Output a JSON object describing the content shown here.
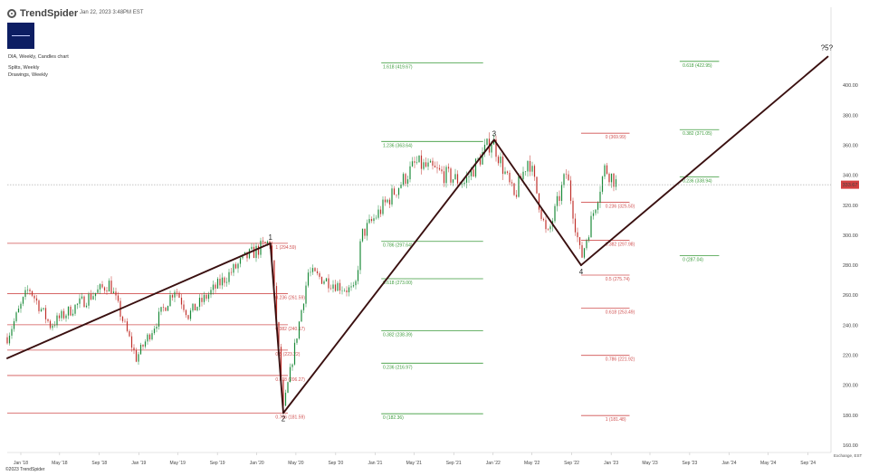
{
  "brand": {
    "name": "TrendSpider",
    "timestamp": "Jan 22, 2023 3:48PM EST"
  },
  "info": {
    "symbol_line": "DIA, Weekly, Candles chart",
    "splits_line": "Splits, Weekly",
    "drawings_line": "Drawings, Weekly"
  },
  "footer": {
    "copyright": "©2023 TrendSpider",
    "exchange": "Exchange, EST"
  },
  "colors": {
    "up": "#1a8a3a",
    "down": "#c0302a",
    "drawing": "#3a1010",
    "fib_red": "#d05050",
    "fib_green": "#3a9a3a",
    "price_badge": "#d24040"
  },
  "chart_data": {
    "type": "candlestick",
    "ylim": [
      160,
      420
    ],
    "y_ticks": [
      "400.00",
      "380.00",
      "360.00",
      "340.00",
      "320.00",
      "300.00",
      "280.00",
      "260.00",
      "240.00",
      "220.00",
      "200.00",
      "180.00",
      "160.00"
    ],
    "x_ticks": [
      "Jan '18",
      "May '18",
      "Sep '18",
      "Jan '19",
      "May '19",
      "Sep '19",
      "Jan '20",
      "May '20",
      "Sep '20",
      "Jan '21",
      "May '21",
      "Sep '21",
      "Jan '22",
      "May '22",
      "Sep '22",
      "Jan '23",
      "May '23",
      "Sep '23",
      "Jan '24",
      "May '24",
      "Sep '24"
    ],
    "x_range": [
      "2017-11-20",
      "2024-11-11"
    ],
    "last_price": "333.67",
    "price_series": [
      [
        "2017-11-20",
        232
      ],
      [
        "2018-01-26",
        265
      ],
      [
        "2018-04-02",
        240
      ],
      [
        "2018-06-15",
        252
      ],
      [
        "2018-10-03",
        268
      ],
      [
        "2018-12-24",
        218
      ],
      [
        "2019-04-23",
        265
      ],
      [
        "2019-06-03",
        247
      ],
      [
        "2019-11-27",
        285
      ],
      [
        "2020-02-12",
        296
      ],
      [
        "2020-03-23",
        184
      ],
      [
        "2020-06-08",
        275
      ],
      [
        "2020-10-30",
        262
      ],
      [
        "2020-11-20",
        300
      ],
      [
        "2021-05-07",
        348
      ],
      [
        "2021-10-04",
        335
      ],
      [
        "2021-12-29",
        364
      ],
      [
        "2022-03-07",
        325
      ],
      [
        "2022-04-21",
        352
      ],
      [
        "2022-06-17",
        298
      ],
      [
        "2022-08-16",
        342
      ],
      [
        "2022-09-30",
        284
      ],
      [
        "2022-12-13",
        345
      ],
      [
        "2023-01-20",
        334
      ]
    ],
    "wave_points": [
      {
        "label": "1",
        "date": "2020-02-12",
        "price": 294.6
      },
      {
        "label": "2",
        "date": "2020-03-23",
        "price": 181.5
      },
      {
        "label": "3",
        "date": "2022-01-04",
        "price": 363.6
      },
      {
        "label": "4",
        "date": "2022-09-30",
        "price": 280.0
      },
      {
        "label": "?5?",
        "date": "2024-11-01",
        "price": 419.0
      }
    ],
    "trend_lines": [
      {
        "from": {
          "date": "2017-11-20",
          "price": 218
        },
        "to": {
          "date": "2020-02-12",
          "price": 294.6
        }
      },
      {
        "from": {
          "date": "2020-02-12",
          "price": 294.6
        },
        "to": {
          "date": "2020-03-23",
          "price": 181.5
        }
      },
      {
        "from": {
          "date": "2020-03-23",
          "price": 181.5
        },
        "to": {
          "date": "2022-01-04",
          "price": 363.6
        }
      },
      {
        "from": {
          "date": "2022-01-04",
          "price": 363.6
        },
        "to": {
          "date": "2022-09-30",
          "price": 280.0
        }
      },
      {
        "from": {
          "date": "2022-09-30",
          "price": 280.0
        },
        "to": {
          "date": "2024-11-01",
          "price": 419.0
        }
      }
    ],
    "fib_sets": [
      {
        "color": "red",
        "start": "2017-11-20",
        "end": "2020-04-06",
        "label_date": "2020-02-28",
        "levels": [
          {
            "price": 294.6,
            "text": "1 (294.59)"
          },
          {
            "price": 261.0,
            "text": "0.236 (261.59)"
          },
          {
            "price": 240.3,
            "text": "0.382 (240.17)"
          },
          {
            "price": 223.4,
            "text": "0.5 (223.22)"
          },
          {
            "price": 206.5,
            "text": "0.618 (206.27)"
          },
          {
            "price": 181.5,
            "text": "0.786 (181.59)"
          }
        ]
      },
      {
        "color": "green",
        "start": "2021-01-20",
        "end": "2021-12-01",
        "label_date": "2021-01-25",
        "levels": [
          {
            "price": 414.8,
            "text": "1.618 (419.67)"
          },
          {
            "price": 362.5,
            "text": "1.236 (363.64)"
          },
          {
            "price": 295.9,
            "text": "0.786 (297.64)"
          },
          {
            "price": 271.0,
            "text": "0.618 (273.00)"
          },
          {
            "price": 236.4,
            "text": "0.382 (238.39)"
          },
          {
            "price": 214.7,
            "text": "0.236 (216.97)"
          },
          {
            "price": 181.0,
            "text": "0 (182.36)"
          }
        ]
      },
      {
        "color": "red",
        "start": "2022-09-30",
        "end": "2023-02-27",
        "label_date": "2022-12-14",
        "levels": [
          {
            "price": 368.0,
            "text": "0 (369.99)"
          },
          {
            "price": 322.0,
            "text": "0.236 (325.50)"
          },
          {
            "price": 296.6,
            "text": "0.382 (297.98)"
          },
          {
            "price": 273.4,
            "text": "0.5 (275.74)"
          },
          {
            "price": 251.3,
            "text": "0.618 (253.49)"
          },
          {
            "price": 219.9,
            "text": "0.786 (221.92)"
          },
          {
            "price": 179.8,
            "text": "1 (181.48)"
          }
        ]
      },
      {
        "color": "green",
        "start": "2023-08-01",
        "end": "2023-12-01",
        "label_date": "2023-08-10",
        "levels": [
          {
            "price": 415.9,
            "text": "0.618 (422.95)"
          },
          {
            "price": 370.4,
            "text": "0.382 (371.05)"
          },
          {
            "price": 338.8,
            "text": "0.236 (338.94)"
          },
          {
            "price": 286.4,
            "text": "0 (287.04)"
          }
        ]
      }
    ]
  }
}
